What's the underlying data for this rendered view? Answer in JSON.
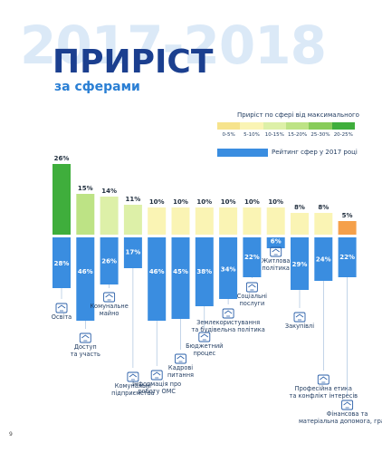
{
  "header": {
    "years": "2017-2018",
    "title": "ПРИРІСТ",
    "subtitle": "за сферами"
  },
  "legend": {
    "growth_title": "Приріст по сфері від максимального",
    "scale": [
      {
        "label": "0-5%",
        "color": "#f6e38c"
      },
      {
        "label": "5-10%",
        "color": "#faf4b4"
      },
      {
        "label": "10-15%",
        "color": "#ddf0a8"
      },
      {
        "label": "15-20%",
        "color": "#bde385"
      },
      {
        "label": "25-30%",
        "color": "#88cc5a"
      },
      {
        "label": "20-25%",
        "color": "#3fae3c"
      }
    ],
    "rating_label": "Рейтинг сфер у 2017 році",
    "rating_color": "#3a8de0"
  },
  "page_number": "9",
  "chart_data": {
    "type": "bar",
    "categories": [
      "Освіта",
      "Доступ та участь",
      "Комунальне майно",
      "Комунальні підприємства",
      "Інформація про роботу ОМС",
      "Кадрові питання",
      "Бюджетний процес",
      "Землекористування та будівельна політика",
      "Соціальні послуги",
      "Житлова політика",
      "Закупівлі",
      "Професійна етика та конфлікт інтересів",
      "Фінансова та матеріальна допомога, гранти"
    ],
    "series": [
      {
        "name": "Приріст по сфері від максимального",
        "values": [
          26,
          15,
          14,
          11,
          10,
          10,
          10,
          10,
          10,
          10,
          8,
          8,
          5
        ],
        "labels": [
          "26%",
          "15%",
          "14%",
          "11%",
          "10%",
          "10%",
          "10%",
          "10%",
          "10%",
          "10%",
          "8%",
          "8%",
          "5%"
        ]
      },
      {
        "name": "Рейтинг сфер у 2017 році",
        "values": [
          28,
          46,
          26,
          17,
          46,
          45,
          38,
          34,
          22,
          6,
          29,
          24,
          22
        ],
        "labels": [
          "28%",
          "46%",
          "26%",
          "17%",
          "46%",
          "45%",
          "38%",
          "34%",
          "22%",
          "6%",
          "29%",
          "24%",
          "22%"
        ]
      }
    ],
    "growth_colors": [
      "#3fae3c",
      "#bde385",
      "#ddf0a8",
      "#ddf0a8",
      "#faf4b4",
      "#faf4b4",
      "#faf4b4",
      "#faf4b4",
      "#faf4b4",
      "#faf4b4",
      "#faf4b4",
      "#faf4b4",
      "#f5a04a"
    ],
    "category_label_lines": [
      [
        "Освіта"
      ],
      [
        "Доступ",
        "та участь"
      ],
      [
        "Комунальне",
        "майно"
      ],
      [
        "Комунальні",
        "підприємства"
      ],
      [
        "Інформація про",
        "роботу ОМС"
      ],
      [
        "Кадрові",
        "питання"
      ],
      [
        "Бюджетний",
        "процес"
      ],
      [
        "Землекористування",
        "та будівельна політика"
      ],
      [
        "Соціальні",
        "послуги"
      ],
      [
        "Житлова",
        "політика"
      ],
      [
        "Закупівлі"
      ],
      [
        "Професійна етика",
        "та конфлікт інтересів"
      ],
      [
        "Фінансова та",
        "матеріальна допомога, гранти"
      ]
    ],
    "icons": [
      "graduation-cap-icon",
      "hand-pointer-icon",
      "city-buildings-icon",
      "factory-icon",
      "info-screen-icon",
      "people-group-icon",
      "budget-calculator-icon",
      "house-crane-icon",
      "social-hands-icon",
      "house-icon",
      "shopping-cart-icon",
      "balance-scale-icon",
      "money-bag-icon"
    ],
    "grid": false
  }
}
